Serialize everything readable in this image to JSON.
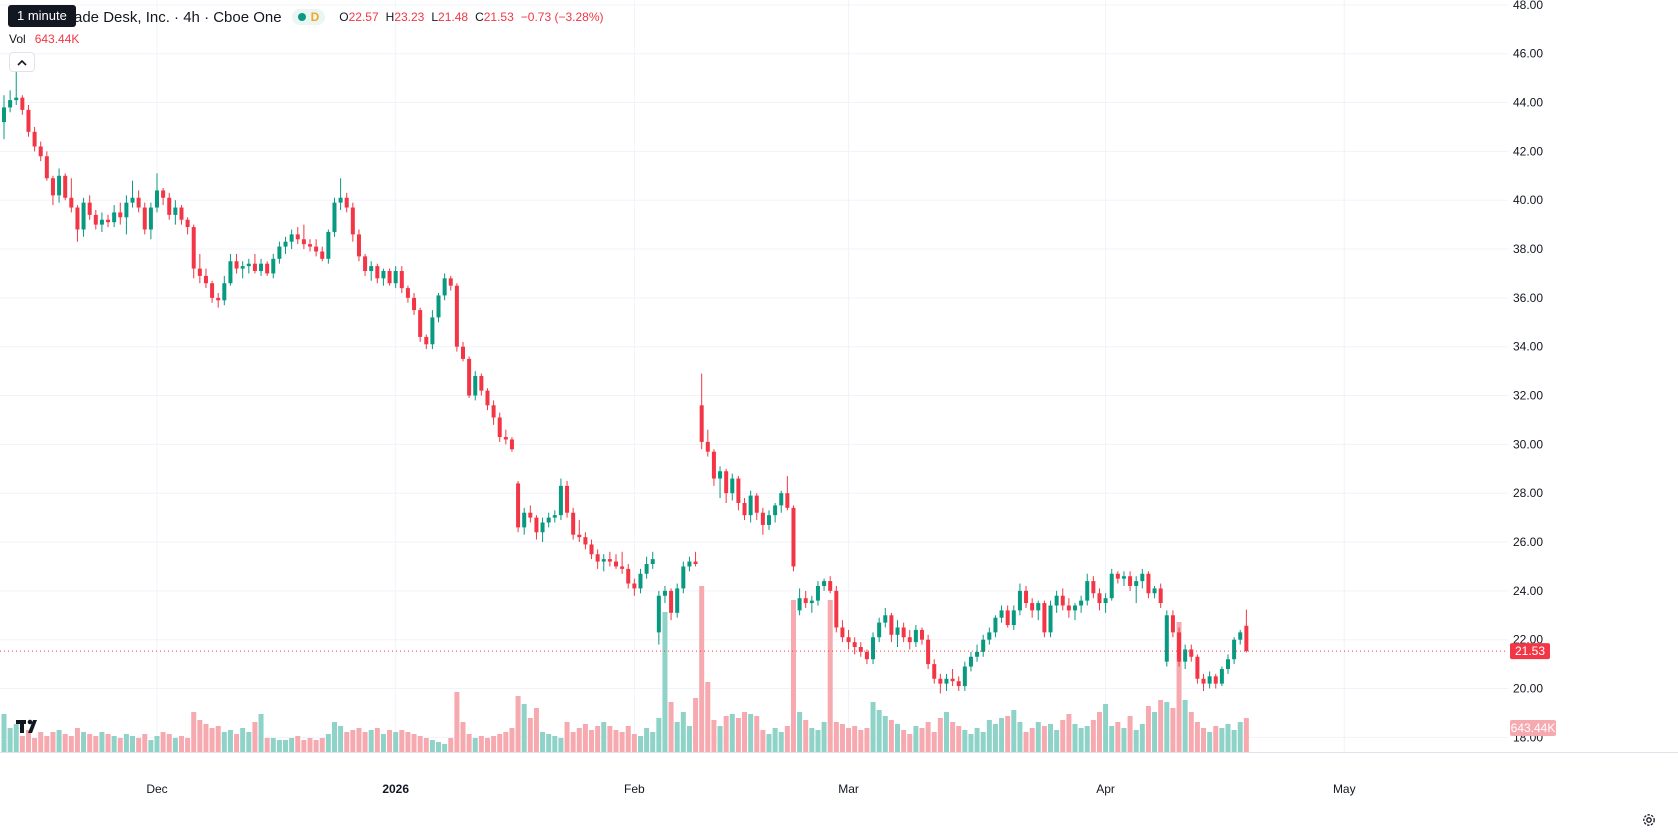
{
  "tooltip": "1 minute",
  "legend": {
    "title": "ade Desk, Inc. · 4h · Cboe One",
    "status_letter": "D",
    "o_label": "O",
    "o": "22.57",
    "h_label": "H",
    "h": "23.23",
    "l_label": "L",
    "l": "21.48",
    "c_label": "C",
    "c": "21.53",
    "change": "−0.73 (−3.28%)"
  },
  "volume": {
    "label": "Vol",
    "value": "643.44K"
  },
  "icons": {
    "collapse": "chevron-up-icon",
    "logo": "tradingview-logo-icon",
    "settings": "gear-icon"
  },
  "colors": {
    "up": "#089981",
    "down": "#f23645",
    "up_volume": "#8fd2c7",
    "down_volume": "#f7a9b0"
  },
  "chart_data": {
    "type": "candlestick",
    "interval": "4h",
    "y_ticks": [
      "48.00",
      "46.00",
      "44.00",
      "42.00",
      "40.00",
      "38.00",
      "36.00",
      "34.00",
      "32.00",
      "30.00",
      "28.00",
      "26.00",
      "24.00",
      "22.00",
      "20.00",
      "18.00"
    ],
    "x_ticks": [
      {
        "label": "Dec",
        "bar": 25
      },
      {
        "label": "2026",
        "bar": 64,
        "bold": true
      },
      {
        "label": "Feb",
        "bar": 103
      },
      {
        "label": "Mar",
        "bar": 138
      },
      {
        "label": "Apr",
        "bar": 180
      },
      {
        "label": "May",
        "bar": 219
      }
    ],
    "ylim": [
      17.4,
      48.2
    ],
    "last_price": "21.53",
    "last_volume_label": "643.44K",
    "candles": [
      [
        43.2,
        44.3,
        42.5,
        43.8
      ],
      [
        43.8,
        44.5,
        43.6,
        44.1
      ],
      [
        44.1,
        45.5,
        43.9,
        44.2
      ],
      [
        44.2,
        44.3,
        43.5,
        43.7
      ],
      [
        43.7,
        43.9,
        42.6,
        42.8
      ],
      [
        42.8,
        43.0,
        42.0,
        42.2
      ],
      [
        42.2,
        42.4,
        41.6,
        41.8
      ],
      [
        41.8,
        42.0,
        40.8,
        40.9
      ],
      [
        40.9,
        41.0,
        39.8,
        40.2
      ],
      [
        40.2,
        41.3,
        39.9,
        41.0
      ],
      [
        41.0,
        41.1,
        40.0,
        40.1
      ],
      [
        40.1,
        40.9,
        39.5,
        39.7
      ],
      [
        39.7,
        39.8,
        38.3,
        38.8
      ],
      [
        38.8,
        40.1,
        38.5,
        39.9
      ],
      [
        39.9,
        40.2,
        39.2,
        39.4
      ],
      [
        39.4,
        39.6,
        38.8,
        39.0
      ],
      [
        39.0,
        39.5,
        38.7,
        39.2
      ],
      [
        39.2,
        39.4,
        38.9,
        39.1
      ],
      [
        39.1,
        39.8,
        38.9,
        39.5
      ],
      [
        39.5,
        39.9,
        39.0,
        39.3
      ],
      [
        39.3,
        40.2,
        38.6,
        39.9
      ],
      [
        39.9,
        40.8,
        39.7,
        40.1
      ],
      [
        40.1,
        40.4,
        39.5,
        39.7
      ],
      [
        39.7,
        39.9,
        38.6,
        38.8
      ],
      [
        38.8,
        39.9,
        38.4,
        39.7
      ],
      [
        39.7,
        41.1,
        39.5,
        40.4
      ],
      [
        40.4,
        40.5,
        39.8,
        40.1
      ],
      [
        40.1,
        40.3,
        39.2,
        39.4
      ],
      [
        39.4,
        40.0,
        39.0,
        39.7
      ],
      [
        39.7,
        39.8,
        39.0,
        39.2
      ],
      [
        39.2,
        39.3,
        38.6,
        38.9
      ],
      [
        38.9,
        39.0,
        36.8,
        37.2
      ],
      [
        37.2,
        37.8,
        36.6,
        36.9
      ],
      [
        36.9,
        37.2,
        36.4,
        36.6
      ],
      [
        36.6,
        36.7,
        35.8,
        36.0
      ],
      [
        36.0,
        36.2,
        35.6,
        35.9
      ],
      [
        35.9,
        36.9,
        35.7,
        36.6
      ],
      [
        36.6,
        37.8,
        36.5,
        37.5
      ],
      [
        37.5,
        37.8,
        37.0,
        37.2
      ],
      [
        37.2,
        37.5,
        36.8,
        37.3
      ],
      [
        37.3,
        37.6,
        37.0,
        37.4
      ],
      [
        37.4,
        37.8,
        37.0,
        37.1
      ],
      [
        37.1,
        37.6,
        36.9,
        37.4
      ],
      [
        37.4,
        37.5,
        36.9,
        37.0
      ],
      [
        37.0,
        37.8,
        36.8,
        37.6
      ],
      [
        37.6,
        38.3,
        37.4,
        38.1
      ],
      [
        38.1,
        38.5,
        37.8,
        38.3
      ],
      [
        38.3,
        38.8,
        38.0,
        38.6
      ],
      [
        38.6,
        38.9,
        38.2,
        38.4
      ],
      [
        38.4,
        39.0,
        38.0,
        38.2
      ],
      [
        38.2,
        38.4,
        37.9,
        38.1
      ],
      [
        38.1,
        38.4,
        37.7,
        37.9
      ],
      [
        37.9,
        38.1,
        37.5,
        37.6
      ],
      [
        37.6,
        38.8,
        37.4,
        38.7
      ],
      [
        38.7,
        40.1,
        38.5,
        39.9
      ],
      [
        39.9,
        40.9,
        39.6,
        40.1
      ],
      [
        40.1,
        40.3,
        39.5,
        39.7
      ],
      [
        39.7,
        39.9,
        38.3,
        38.6
      ],
      [
        38.6,
        38.8,
        37.5,
        37.7
      ],
      [
        37.7,
        37.8,
        36.9,
        37.1
      ],
      [
        37.1,
        37.5,
        36.7,
        37.3
      ],
      [
        37.3,
        37.4,
        36.6,
        36.8
      ],
      [
        36.8,
        37.2,
        36.5,
        37.1
      ],
      [
        37.1,
        37.2,
        36.5,
        36.6
      ],
      [
        36.6,
        37.3,
        36.4,
        37.1
      ],
      [
        37.1,
        37.3,
        36.2,
        36.4
      ],
      [
        36.4,
        36.5,
        35.8,
        36.0
      ],
      [
        36.0,
        36.2,
        35.3,
        35.5
      ],
      [
        35.5,
        35.6,
        34.2,
        34.4
      ],
      [
        34.4,
        34.5,
        33.9,
        34.1
      ],
      [
        34.1,
        35.5,
        33.9,
        35.2
      ],
      [
        35.2,
        36.2,
        35.0,
        36.1
      ],
      [
        36.1,
        37.0,
        35.9,
        36.8
      ],
      [
        36.8,
        36.9,
        36.3,
        36.5
      ],
      [
        36.5,
        36.6,
        33.8,
        34.0
      ],
      [
        34.0,
        34.2,
        33.4,
        33.5
      ],
      [
        33.5,
        33.6,
        31.9,
        32.0
      ],
      [
        32.0,
        33.0,
        31.8,
        32.8
      ],
      [
        32.8,
        32.9,
        32.0,
        32.2
      ],
      [
        32.2,
        32.3,
        31.4,
        31.6
      ],
      [
        31.6,
        31.8,
        30.8,
        31.1
      ],
      [
        31.1,
        31.3,
        30.1,
        30.3
      ],
      [
        30.3,
        30.6,
        30.0,
        30.2
      ],
      [
        30.2,
        30.3,
        29.7,
        29.8
      ],
      [
        28.4,
        28.5,
        26.4,
        26.6
      ],
      [
        26.6,
        27.4,
        26.3,
        27.2
      ],
      [
        27.2,
        27.5,
        26.8,
        27.0
      ],
      [
        27.0,
        27.1,
        26.1,
        26.4
      ],
      [
        26.4,
        27.0,
        26.0,
        26.8
      ],
      [
        26.8,
        27.2,
        26.6,
        27.0
      ],
      [
        27.0,
        27.3,
        26.8,
        27.1
      ],
      [
        27.1,
        28.6,
        26.9,
        28.3
      ],
      [
        28.3,
        28.5,
        27.0,
        27.2
      ],
      [
        27.2,
        27.4,
        26.1,
        26.3
      ],
      [
        26.3,
        26.9,
        26.0,
        26.2
      ],
      [
        26.2,
        26.4,
        25.7,
        25.9
      ],
      [
        25.9,
        26.1,
        25.3,
        25.5
      ],
      [
        25.5,
        25.7,
        24.9,
        25.2
      ],
      [
        25.2,
        25.5,
        24.8,
        25.3
      ],
      [
        25.3,
        25.6,
        25.0,
        25.2
      ],
      [
        25.2,
        25.5,
        24.9,
        25.0
      ],
      [
        25.0,
        25.6,
        24.7,
        24.9
      ],
      [
        24.9,
        25.1,
        24.1,
        24.3
      ],
      [
        24.3,
        24.5,
        23.8,
        24.1
      ],
      [
        24.1,
        24.9,
        23.9,
        24.7
      ],
      [
        24.7,
        25.4,
        24.5,
        25.1
      ],
      [
        25.1,
        25.6,
        24.9,
        25.3
      ],
      [
        22.3,
        24.0,
        21.8,
        23.8
      ],
      [
        23.8,
        24.2,
        23.5,
        24.0
      ],
      [
        24.0,
        24.1,
        22.8,
        23.1
      ],
      [
        23.1,
        24.3,
        22.9,
        24.1
      ],
      [
        24.1,
        25.2,
        23.9,
        25.0
      ],
      [
        25.0,
        25.4,
        24.8,
        25.2
      ],
      [
        25.2,
        25.6,
        25.0,
        25.1
      ],
      [
        31.6,
        32.9,
        29.8,
        30.1
      ],
      [
        30.1,
        30.6,
        29.5,
        29.7
      ],
      [
        29.7,
        29.8,
        28.3,
        28.6
      ],
      [
        28.6,
        29.1,
        27.8,
        28.9
      ],
      [
        28.9,
        29.0,
        27.6,
        28.0
      ],
      [
        28.0,
        28.8,
        27.7,
        28.6
      ],
      [
        28.6,
        28.7,
        27.3,
        27.6
      ],
      [
        27.6,
        27.8,
        26.9,
        27.1
      ],
      [
        27.1,
        28.1,
        26.8,
        27.9
      ],
      [
        27.9,
        28.0,
        26.9,
        27.2
      ],
      [
        27.2,
        27.4,
        26.3,
        26.7
      ],
      [
        26.7,
        27.3,
        26.5,
        27.1
      ],
      [
        27.1,
        27.6,
        26.8,
        27.5
      ],
      [
        27.5,
        28.1,
        27.2,
        28.0
      ],
      [
        28.0,
        28.7,
        27.3,
        27.4
      ],
      [
        27.4,
        27.5,
        24.8,
        25.0
      ],
      [
        23.2,
        24.1,
        23.0,
        23.7
      ],
      [
        23.7,
        24.0,
        23.3,
        23.5
      ],
      [
        23.5,
        23.8,
        23.1,
        23.6
      ],
      [
        23.6,
        24.4,
        23.4,
        24.2
      ],
      [
        24.2,
        24.5,
        24.0,
        24.4
      ],
      [
        24.4,
        24.6,
        23.9,
        24.0
      ],
      [
        24.0,
        24.2,
        22.3,
        22.5
      ],
      [
        22.5,
        22.8,
        21.9,
        22.1
      ],
      [
        22.1,
        22.4,
        21.6,
        21.9
      ],
      [
        21.9,
        22.1,
        21.4,
        21.7
      ],
      [
        21.7,
        21.9,
        21.3,
        21.5
      ],
      [
        21.5,
        21.6,
        21.0,
        21.2
      ],
      [
        21.2,
        22.3,
        21.0,
        22.1
      ],
      [
        22.1,
        22.9,
        21.9,
        22.7
      ],
      [
        22.7,
        23.3,
        22.5,
        23.0
      ],
      [
        23.0,
        23.1,
        21.9,
        22.2
      ],
      [
        22.2,
        22.8,
        21.7,
        22.5
      ],
      [
        22.5,
        22.7,
        21.9,
        22.1
      ],
      [
        22.1,
        22.4,
        21.6,
        21.9
      ],
      [
        21.9,
        22.6,
        21.7,
        22.4
      ],
      [
        22.4,
        22.5,
        21.8,
        22.0
      ],
      [
        22.0,
        22.2,
        20.8,
        21.0
      ],
      [
        21.0,
        21.2,
        20.2,
        20.4
      ],
      [
        20.4,
        20.6,
        19.8,
        20.2
      ],
      [
        20.2,
        20.6,
        19.9,
        20.4
      ],
      [
        20.4,
        20.8,
        20.1,
        20.3
      ],
      [
        20.3,
        20.5,
        19.9,
        20.1
      ],
      [
        20.1,
        21.1,
        19.9,
        20.9
      ],
      [
        20.9,
        21.5,
        20.7,
        21.3
      ],
      [
        21.3,
        21.8,
        21.1,
        21.5
      ],
      [
        21.5,
        22.2,
        21.3,
        22.0
      ],
      [
        22.0,
        22.5,
        21.8,
        22.3
      ],
      [
        22.3,
        23.0,
        22.1,
        22.9
      ],
      [
        22.9,
        23.4,
        22.7,
        23.2
      ],
      [
        23.2,
        23.4,
        22.5,
        22.6
      ],
      [
        22.6,
        23.4,
        22.4,
        23.2
      ],
      [
        23.2,
        24.3,
        23.0,
        24.0
      ],
      [
        24.0,
        24.2,
        23.3,
        23.5
      ],
      [
        23.5,
        23.7,
        22.9,
        23.2
      ],
      [
        23.2,
        23.6,
        22.8,
        23.5
      ],
      [
        23.5,
        23.6,
        22.1,
        22.3
      ],
      [
        22.3,
        23.6,
        22.1,
        23.4
      ],
      [
        23.4,
        24.0,
        23.1,
        23.8
      ],
      [
        23.8,
        24.1,
        23.2,
        23.4
      ],
      [
        23.4,
        23.7,
        22.9,
        23.2
      ],
      [
        23.2,
        23.5,
        22.8,
        23.4
      ],
      [
        23.4,
        23.8,
        23.1,
        23.6
      ],
      [
        23.6,
        24.7,
        23.4,
        24.4
      ],
      [
        24.4,
        24.6,
        23.7,
        23.9
      ],
      [
        23.9,
        24.1,
        23.2,
        23.5
      ],
      [
        23.5,
        23.9,
        23.1,
        23.7
      ],
      [
        23.7,
        24.9,
        23.6,
        24.7
      ],
      [
        24.7,
        24.8,
        24.3,
        24.5
      ],
      [
        24.5,
        24.8,
        24.2,
        24.6
      ],
      [
        24.6,
        24.8,
        24.0,
        24.2
      ],
      [
        24.2,
        24.6,
        23.5,
        24.4
      ],
      [
        24.4,
        24.9,
        24.1,
        24.7
      ],
      [
        24.7,
        24.8,
        23.7,
        23.9
      ],
      [
        23.9,
        24.2,
        23.7,
        24.1
      ],
      [
        24.1,
        24.3,
        23.3,
        23.5
      ],
      [
        21.1,
        23.2,
        20.9,
        23.0
      ],
      [
        23.0,
        23.2,
        22.1,
        22.3
      ],
      [
        22.3,
        22.5,
        20.9,
        21.1
      ],
      [
        21.1,
        21.8,
        20.8,
        21.6
      ],
      [
        21.6,
        21.8,
        21.1,
        21.3
      ],
      [
        21.3,
        21.4,
        20.2,
        20.4
      ],
      [
        20.4,
        20.6,
        19.9,
        20.2
      ],
      [
        20.2,
        20.7,
        20.0,
        20.5
      ],
      [
        20.5,
        20.6,
        20.0,
        20.2
      ],
      [
        20.2,
        20.9,
        20.1,
        20.8
      ],
      [
        20.8,
        21.4,
        20.6,
        21.2
      ],
      [
        21.2,
        22.1,
        21.0,
        22.0
      ],
      [
        22.0,
        22.4,
        21.8,
        22.3
      ],
      [
        22.57,
        23.23,
        21.48,
        21.53
      ]
    ],
    "volumes": [
      38,
      24,
      28,
      16,
      22,
      14,
      20,
      16,
      20,
      22,
      18,
      16,
      24,
      20,
      18,
      16,
      20,
      18,
      16,
      14,
      18,
      16,
      14,
      18,
      12,
      16,
      20,
      18,
      14,
      16,
      14,
      40,
      32,
      28,
      24,
      26,
      20,
      22,
      18,
      24,
      20,
      30,
      38,
      14,
      14,
      12,
      12,
      14,
      16,
      12,
      14,
      12,
      14,
      18,
      30,
      26,
      20,
      22,
      24,
      20,
      22,
      24,
      18,
      22,
      20,
      22,
      20,
      18,
      16,
      14,
      12,
      10,
      8,
      14,
      60,
      30,
      18,
      14,
      16,
      14,
      16,
      18,
      20,
      24,
      56,
      48,
      34,
      44,
      20,
      18,
      16,
      14,
      30,
      20,
      24,
      28,
      22,
      26,
      30,
      26,
      22,
      20,
      26,
      18,
      16,
      24,
      20,
      34,
      140,
      50,
      30,
      40,
      26,
      54,
      166,
      70,
      32,
      26,
      36,
      38,
      34,
      40,
      38,
      36,
      22,
      18,
      24,
      20,
      26,
      152,
      40,
      32,
      24,
      22,
      30,
      152,
      30,
      28,
      24,
      26,
      22,
      24,
      50,
      42,
      36,
      32,
      28,
      22,
      18,
      26,
      24,
      30,
      20,
      34,
      40,
      30,
      26,
      22,
      18,
      24,
      20,
      32,
      28,
      34,
      36,
      42,
      30,
      20,
      24,
      30,
      26,
      28,
      22,
      32,
      38,
      28,
      24,
      26,
      32,
      40,
      48,
      26,
      30,
      24,
      36,
      22,
      28,
      46,
      40,
      52,
      50,
      44,
      130,
      52,
      40,
      30,
      24,
      20,
      26,
      24,
      28,
      22,
      30,
      34,
      36,
      28
    ],
    "volume_ylim": [
      0,
      280
    ],
    "grid": true
  }
}
